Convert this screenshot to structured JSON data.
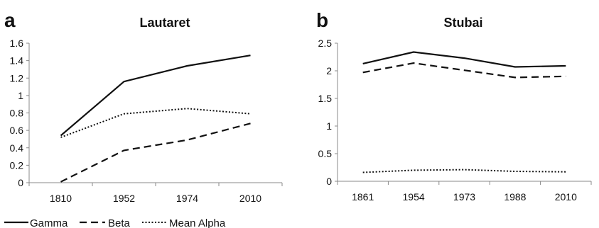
{
  "chart_data": [
    {
      "panel_label": "a",
      "type": "line",
      "title": "Lautaret",
      "categories": [
        "1810",
        "1952",
        "1974",
        "2010"
      ],
      "ylim": [
        0,
        1.6
      ],
      "yticks": [
        "0",
        "0.2",
        "0.4",
        "0.6",
        "0.8",
        "1",
        "1.2",
        "1.4",
        "1.6"
      ],
      "grid": false,
      "series": [
        {
          "name": "Gamma",
          "values": [
            0.54,
            1.16,
            1.34,
            1.46
          ],
          "dash": "solid"
        },
        {
          "name": "Beta",
          "values": [
            0.01,
            0.37,
            0.49,
            0.68
          ],
          "dash": "dashed"
        },
        {
          "name": "Mean Alpha",
          "values": [
            0.52,
            0.79,
            0.85,
            0.79
          ],
          "dash": "dotted"
        }
      ]
    },
    {
      "panel_label": "b",
      "type": "line",
      "title": "Stubai",
      "categories": [
        "1861",
        "1954",
        "1973",
        "1988",
        "2010"
      ],
      "ylim": [
        0,
        2.5
      ],
      "yticks": [
        "0",
        "0.5",
        "1",
        "1.5",
        "2",
        "2.5"
      ],
      "grid": false,
      "series": [
        {
          "name": "Gamma",
          "values": [
            2.13,
            2.34,
            2.23,
            2.07,
            2.09
          ],
          "dash": "solid"
        },
        {
          "name": "Beta",
          "values": [
            1.97,
            2.14,
            2.01,
            1.88,
            1.9
          ],
          "dash": "dashed"
        },
        {
          "name": "Mean Alpha",
          "values": [
            0.16,
            0.2,
            0.21,
            0.18,
            0.17
          ],
          "dash": "dotted"
        }
      ]
    }
  ],
  "legend": {
    "placement": "bottom-left",
    "entries": [
      {
        "label": "Gamma",
        "dash": "solid"
      },
      {
        "label": "Beta",
        "dash": "dashed"
      },
      {
        "label": "Mean Alpha",
        "dash": "dotted"
      }
    ]
  },
  "colors": {
    "line": "#111111",
    "axis": "#888888",
    "text": "#111111"
  }
}
